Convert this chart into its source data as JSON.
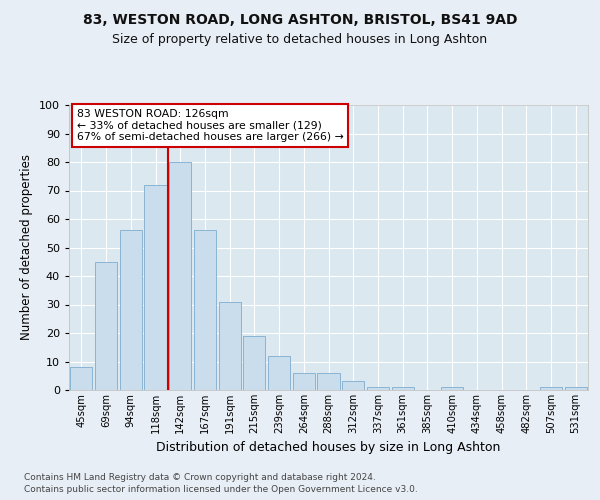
{
  "title1": "83, WESTON ROAD, LONG ASHTON, BRISTOL, BS41 9AD",
  "title2": "Size of property relative to detached houses in Long Ashton",
  "xlabel": "Distribution of detached houses by size in Long Ashton",
  "ylabel": "Number of detached properties",
  "categories": [
    "45sqm",
    "69sqm",
    "94sqm",
    "118sqm",
    "142sqm",
    "167sqm",
    "191sqm",
    "215sqm",
    "239sqm",
    "264sqm",
    "288sqm",
    "312sqm",
    "337sqm",
    "361sqm",
    "385sqm",
    "410sqm",
    "434sqm",
    "458sqm",
    "482sqm",
    "507sqm",
    "531sqm"
  ],
  "values": [
    8,
    45,
    56,
    72,
    80,
    56,
    31,
    19,
    12,
    6,
    6,
    3,
    1,
    1,
    0,
    1,
    0,
    0,
    0,
    1,
    1
  ],
  "bar_color": "#c9dded",
  "bar_edge_color": "#8ab4d4",
  "vline_x": 3.5,
  "vline_color": "#cc0000",
  "annotation_text": "83 WESTON ROAD: 126sqm\n← 33% of detached houses are smaller (129)\n67% of semi-detached houses are larger (266) →",
  "annotation_box_color": "#ffffff",
  "annotation_box_edge": "#cc0000",
  "ylim": [
    0,
    100
  ],
  "yticks": [
    0,
    10,
    20,
    30,
    40,
    50,
    60,
    70,
    80,
    90,
    100
  ],
  "footnote1": "Contains HM Land Registry data © Crown copyright and database right 2024.",
  "footnote2": "Contains public sector information licensed under the Open Government Licence v3.0.",
  "bg_color": "#e8eef5",
  "plot_bg_color": "#dce8f0"
}
